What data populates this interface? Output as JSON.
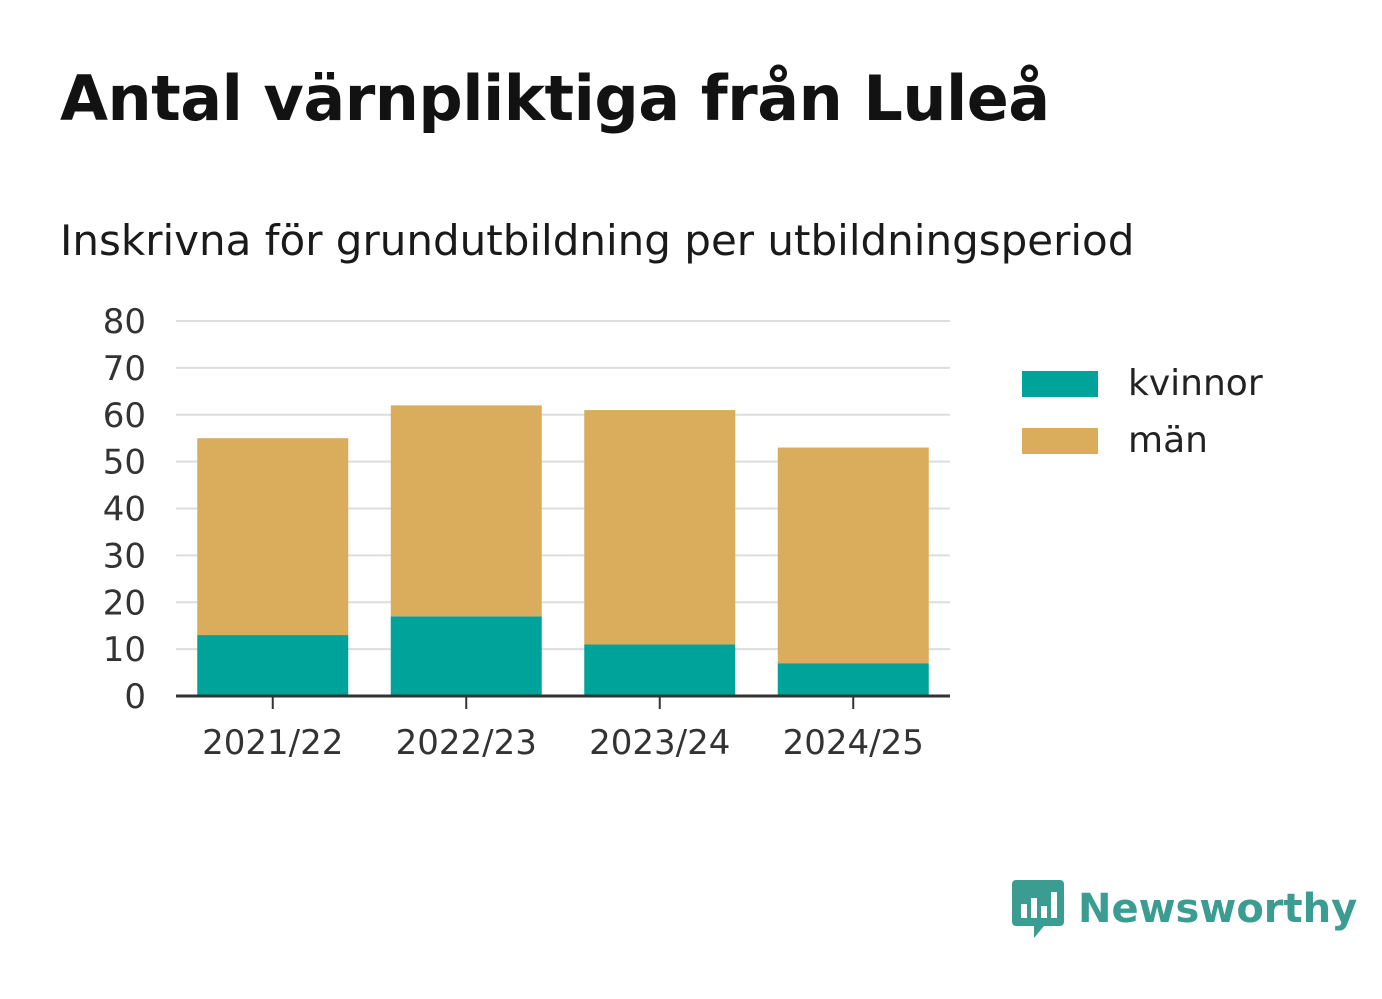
{
  "title": "Antal värnpliktiga från Luleå",
  "subtitle": "Inskrivna för grundutbildning per utbildningsperiod",
  "brand": {
    "name": "Newsworthy",
    "icon": "newsworthy-logo-icon",
    "color": "#3b9c91"
  },
  "chart_data": {
    "type": "bar",
    "stacked": true,
    "categories": [
      "2021/22",
      "2022/23",
      "2023/24",
      "2024/25"
    ],
    "series": [
      {
        "name": "kvinnor",
        "color": "#00a39a",
        "values": [
          13,
          17,
          11,
          7
        ]
      },
      {
        "name": "män",
        "color": "#d9ad5b",
        "values": [
          42,
          45,
          50,
          46
        ]
      }
    ],
    "ylim": [
      0,
      80
    ],
    "yticks": [
      0,
      10,
      20,
      30,
      40,
      50,
      60,
      70,
      80
    ],
    "grid": true,
    "legend_position": "right"
  }
}
